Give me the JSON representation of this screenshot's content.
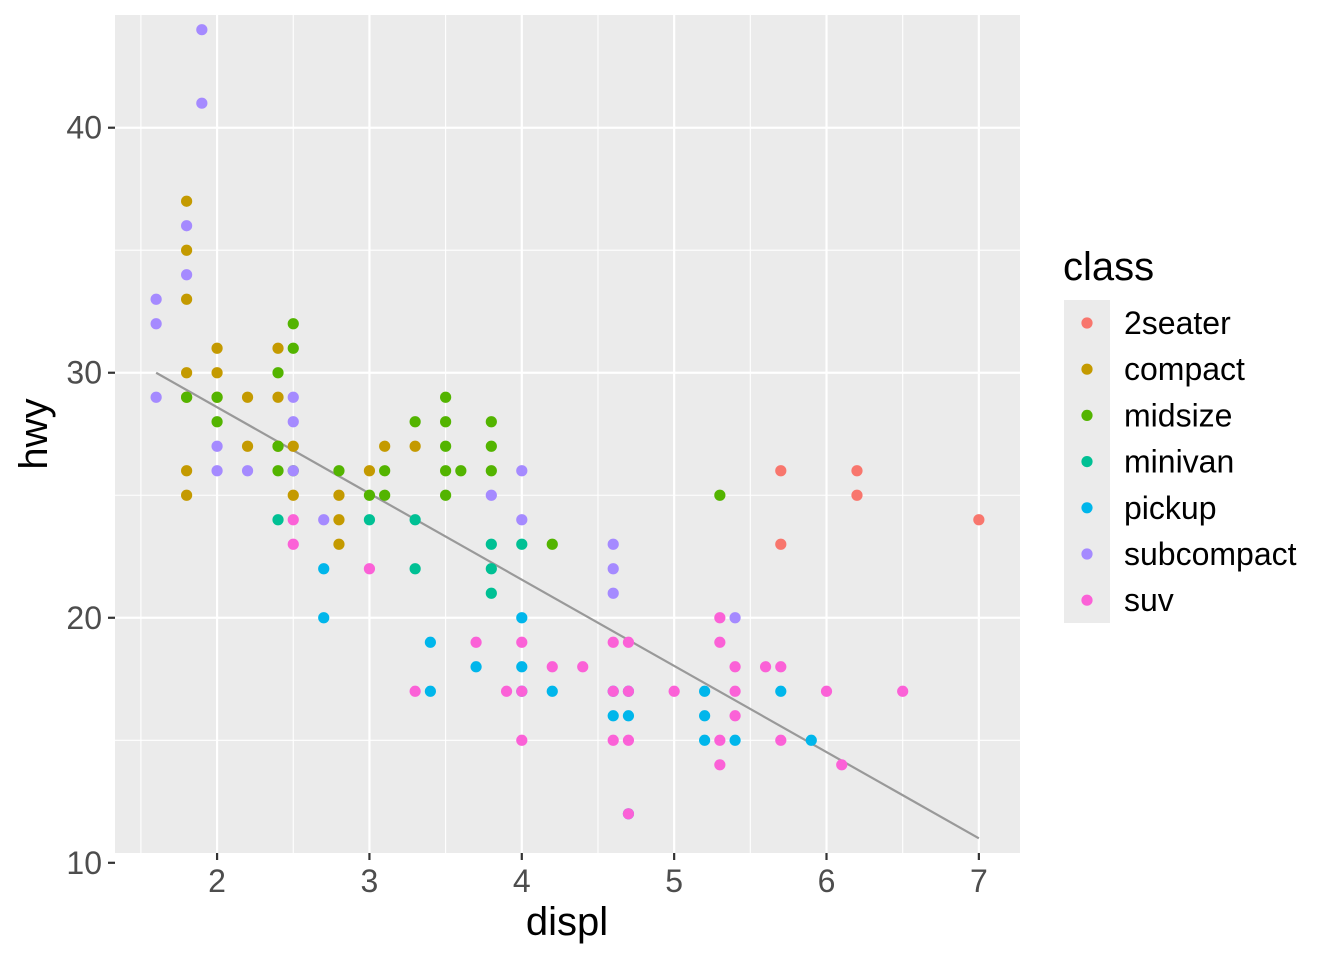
{
  "chart_data": {
    "type": "scatter",
    "title": "",
    "xlabel": "displ",
    "ylabel": "hwy",
    "xlim": [
      1.33,
      7.27
    ],
    "ylim": [
      10.4,
      44.6
    ],
    "x_ticks": [
      2,
      3,
      4,
      5,
      6,
      7
    ],
    "y_ticks": [
      10,
      20,
      30,
      40
    ],
    "grid": true,
    "legend": {
      "title": "class",
      "placement": "right",
      "entries": [
        "2seater",
        "compact",
        "midsize",
        "minivan",
        "pickup",
        "subcompact",
        "suv"
      ]
    },
    "colors": {
      "2seater": "#F8766D",
      "compact": "#C49A00",
      "midsize": "#53B400",
      "minivan": "#00C094",
      "pickup": "#00B6EB",
      "subcompact": "#A58AFF",
      "suv": "#FB61D7",
      "panel": "#EBEBEB",
      "grid": "#FFFFFF",
      "trend": "#999999"
    },
    "trend_line": {
      "x": [
        1.6,
        7.0
      ],
      "y": [
        30.0,
        11.0
      ]
    },
    "series": [
      {
        "name": "2seater",
        "points": [
          [
            5.7,
            26
          ],
          [
            5.7,
            23
          ],
          [
            6.2,
            26
          ],
          [
            6.2,
            25
          ],
          [
            7.0,
            24
          ]
        ]
      },
      {
        "name": "compact",
        "points": [
          [
            1.8,
            37
          ],
          [
            1.8,
            35
          ],
          [
            1.8,
            33
          ],
          [
            1.8,
            30
          ],
          [
            1.8,
            29
          ],
          [
            1.8,
            26
          ],
          [
            1.8,
            25
          ],
          [
            2.0,
            31
          ],
          [
            2.0,
            30
          ],
          [
            2.0,
            29
          ],
          [
            2.2,
            29
          ],
          [
            2.2,
            27
          ],
          [
            2.4,
            31
          ],
          [
            2.4,
            29
          ],
          [
            2.4,
            27
          ],
          [
            2.5,
            27
          ],
          [
            2.5,
            25
          ],
          [
            2.8,
            25
          ],
          [
            2.8,
            24
          ],
          [
            2.8,
            23
          ],
          [
            3.0,
            26
          ],
          [
            3.1,
            27
          ],
          [
            3.3,
            27
          ]
        ]
      },
      {
        "name": "midsize",
        "points": [
          [
            1.8,
            29
          ],
          [
            2.0,
            28
          ],
          [
            2.0,
            29
          ],
          [
            2.4,
            30
          ],
          [
            2.4,
            27
          ],
          [
            2.4,
            26
          ],
          [
            2.5,
            32
          ],
          [
            2.5,
            31
          ],
          [
            2.5,
            26
          ],
          [
            2.8,
            26
          ],
          [
            3.0,
            25
          ],
          [
            3.1,
            26
          ],
          [
            3.1,
            25
          ],
          [
            3.3,
            28
          ],
          [
            3.5,
            29
          ],
          [
            3.5,
            28
          ],
          [
            3.5,
            27
          ],
          [
            3.5,
            26
          ],
          [
            3.5,
            25
          ],
          [
            3.6,
            26
          ],
          [
            3.8,
            28
          ],
          [
            3.8,
            27
          ],
          [
            3.8,
            26
          ],
          [
            4.2,
            23
          ],
          [
            5.3,
            25
          ]
        ]
      },
      {
        "name": "minivan",
        "points": [
          [
            2.4,
            24
          ],
          [
            3.0,
            24
          ],
          [
            3.3,
            24
          ],
          [
            3.3,
            22
          ],
          [
            3.8,
            23
          ],
          [
            3.8,
            22
          ],
          [
            3.8,
            21
          ],
          [
            4.0,
            23
          ]
        ]
      },
      {
        "name": "pickup",
        "points": [
          [
            2.7,
            22
          ],
          [
            2.7,
            20
          ],
          [
            3.4,
            19
          ],
          [
            3.4,
            17
          ],
          [
            3.7,
            18
          ],
          [
            4.0,
            20
          ],
          [
            4.0,
            18
          ],
          [
            4.0,
            17
          ],
          [
            4.2,
            17
          ],
          [
            4.6,
            17
          ],
          [
            4.6,
            16
          ],
          [
            4.7,
            17
          ],
          [
            4.7,
            16
          ],
          [
            4.7,
            12
          ],
          [
            5.2,
            17
          ],
          [
            5.2,
            16
          ],
          [
            5.2,
            15
          ],
          [
            5.4,
            15
          ],
          [
            5.7,
            17
          ],
          [
            5.9,
            15
          ]
        ]
      },
      {
        "name": "subcompact",
        "points": [
          [
            1.6,
            33
          ],
          [
            1.6,
            32
          ],
          [
            1.6,
            29
          ],
          [
            1.8,
            36
          ],
          [
            1.8,
            34
          ],
          [
            1.9,
            44
          ],
          [
            1.9,
            41
          ],
          [
            2.0,
            27
          ],
          [
            2.0,
            26
          ],
          [
            2.2,
            26
          ],
          [
            2.5,
            29
          ],
          [
            2.5,
            28
          ],
          [
            2.5,
            26
          ],
          [
            2.7,
            24
          ],
          [
            3.8,
            25
          ],
          [
            4.0,
            26
          ],
          [
            4.0,
            24
          ],
          [
            4.6,
            23
          ],
          [
            4.6,
            22
          ],
          [
            4.6,
            21
          ],
          [
            5.4,
            20
          ]
        ]
      },
      {
        "name": "suv",
        "points": [
          [
            2.5,
            24
          ],
          [
            2.5,
            23
          ],
          [
            3.0,
            22
          ],
          [
            3.3,
            17
          ],
          [
            3.7,
            19
          ],
          [
            3.9,
            17
          ],
          [
            4.0,
            19
          ],
          [
            4.0,
            17
          ],
          [
            4.0,
            15
          ],
          [
            4.2,
            18
          ],
          [
            4.4,
            18
          ],
          [
            4.6,
            19
          ],
          [
            4.6,
            17
          ],
          [
            4.6,
            15
          ],
          [
            4.7,
            19
          ],
          [
            4.7,
            17
          ],
          [
            4.7,
            15
          ],
          [
            4.7,
            12
          ],
          [
            5.0,
            17
          ],
          [
            5.3,
            20
          ],
          [
            5.3,
            19
          ],
          [
            5.3,
            15
          ],
          [
            5.3,
            14
          ],
          [
            5.4,
            18
          ],
          [
            5.4,
            17
          ],
          [
            5.4,
            16
          ],
          [
            5.6,
            18
          ],
          [
            5.7,
            18
          ],
          [
            5.7,
            15
          ],
          [
            6.0,
            17
          ],
          [
            6.1,
            14
          ],
          [
            6.5,
            17
          ]
        ]
      }
    ]
  }
}
